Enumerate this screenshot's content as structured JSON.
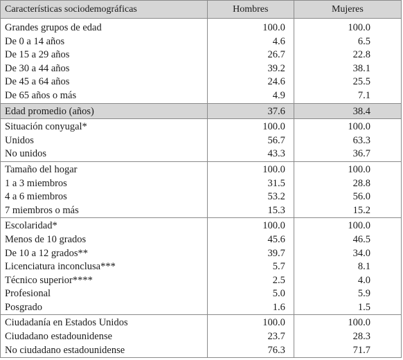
{
  "header": {
    "col1": "Características sociodemográficas",
    "col2": "Hombres",
    "col3": "Mujeres"
  },
  "rows": [
    {
      "label": "Grandes grupos de edad",
      "h": "100.0",
      "m": "100.0"
    },
    {
      "label": "De 0 a 14 años",
      "h": "4.6",
      "m": "6.5"
    },
    {
      "label": "De 15 a 29 años",
      "h": "26.7",
      "m": "22.8"
    },
    {
      "label": "De 30 a 44 años",
      "h": "39.2",
      "m": "38.1"
    },
    {
      "label": "De 45 a 64 años",
      "h": "24.6",
      "m": "25.5"
    },
    {
      "label": "De 65 años o más",
      "h": "4.9",
      "m": "7.1"
    },
    {
      "label": "Edad promedio (años)",
      "h": "37.6",
      "m": "38.4"
    },
    {
      "label": "Situación conyugal*",
      "h": "100.0",
      "m": "100.0"
    },
    {
      "label": "Unidos",
      "h": "56.7",
      "m": "63.3"
    },
    {
      "label": "No unidos",
      "h": "43.3",
      "m": "36.7"
    },
    {
      "label": "Tamaño del hogar",
      "h": "100.0",
      "m": "100.0"
    },
    {
      "label": "1 a 3 miembros",
      "h": "31.5",
      "m": "28.8"
    },
    {
      "label": "4 a 6 miembros",
      "h": "53.2",
      "m": "56.0"
    },
    {
      "label": "7 miembros o más",
      "h": "15.3",
      "m": "15.2"
    },
    {
      "label": "Escolaridad*",
      "h": "100.0",
      "m": "100.0"
    },
    {
      "label": "Menos de 10 grados",
      "h": "45.6",
      "m": "46.5"
    },
    {
      "label": "De 10 a 12 grados**",
      "h": "39.7",
      "m": "34.0"
    },
    {
      "label": "Licenciatura inconclusa***",
      "h": "5.7",
      "m": "8.1"
    },
    {
      "label": "Técnico superior****",
      "h": "2.5",
      "m": "4.0"
    },
    {
      "label": "Profesional",
      "h": "5.0",
      "m": "5.9"
    },
    {
      "label": "Posgrado",
      "h": "1.6",
      "m": "1.5"
    },
    {
      "label": "Ciudadanía en Estados Unidos",
      "h": "100.0",
      "m": "100.0"
    },
    {
      "label": "Ciudadano estadounidense",
      "h": "23.7",
      "m": "28.3"
    },
    {
      "label": "No ciudadano estadounidense",
      "h": "76.3",
      "m": "71.7"
    }
  ]
}
